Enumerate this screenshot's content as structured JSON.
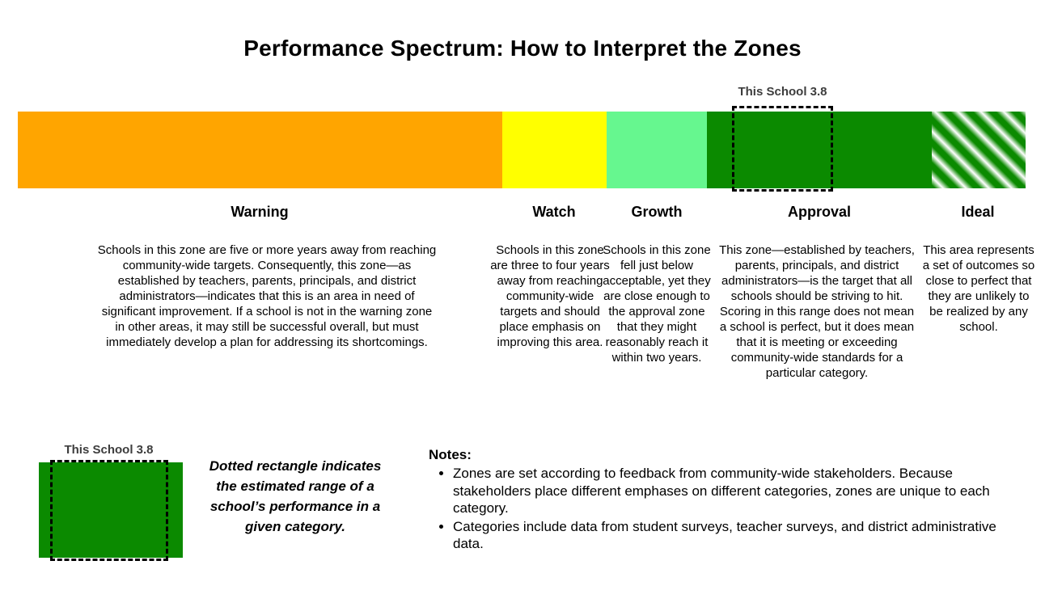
{
  "title": "Performance Spectrum: How to Interpret the Zones",
  "marker": {
    "label": "This School 3.8",
    "value": 3.8,
    "zone": "Approval"
  },
  "colors": {
    "warning": "#FFA500",
    "watch": "#FFFF00",
    "growth": "#66F78F",
    "approval": "#0B8A00",
    "marker_text": "#3D3D3D"
  },
  "zones": [
    {
      "name": "Warning",
      "color": "#FFA500",
      "description": "Schools in this zone are five or more years away from reaching community-wide targets. Consequently, this zone—as established by teachers, parents, principals, and district administrators—indicates that this is an area in need of significant improvement. If a school is not in the warning zone in other areas, it may still be successful overall, but must immediately develop a plan for addressing its shortcomings."
    },
    {
      "name": "Watch",
      "color": "#FFFF00",
      "description": "Schools in this zone are three to four years away from reaching community-wide targets and should place emphasis on improving this area."
    },
    {
      "name": "Growth",
      "color": "#66F78F",
      "description": "Schools in this zone fell just below acceptable, yet they are close enough to the approval zone that they might reasonably reach it within two years."
    },
    {
      "name": "Approval",
      "color": "#0B8A00",
      "description": "This zone—established by teachers, parents, principals, and district administrators—is the target that all schools should be striving to hit. Scoring in this range does not mean a school is perfect, but it does mean that it is meeting or exceeding community-wide standards for a particular category."
    },
    {
      "name": "Ideal",
      "color": "green-white-diagonal-stripes",
      "description": "This area represents a set of outcomes so close to perfect that they are unlikely to be realized by any school."
    }
  ],
  "legend": {
    "marker_label": "This School 3.8",
    "caption": "Dotted rectangle indicates the estimated range of a school’s performance in a given category."
  },
  "notes": {
    "heading": "Notes:",
    "items": [
      "Zones are set according to feedback from community-wide stakeholders. Because stakeholders place different emphases on different categories, zones are unique to each category.",
      "Categories include data from student surveys, teacher surveys, and district administrative data."
    ]
  }
}
